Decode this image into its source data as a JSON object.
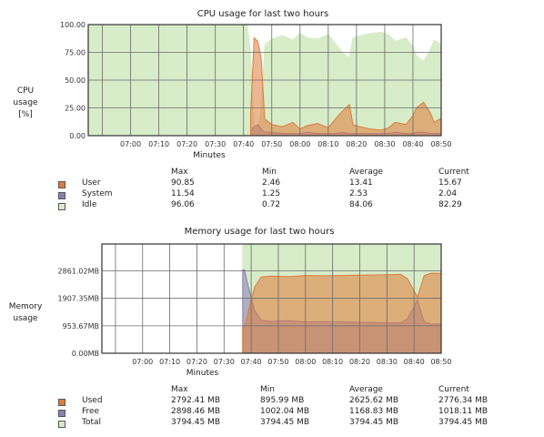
{
  "cpu": {
    "title": "CPU usage for last two hours",
    "ylabel_lines": [
      "CPU",
      "usage",
      "[%]"
    ],
    "xlabel": "Minutes",
    "stats_headers": [
      "Max",
      "Min",
      "Average",
      "Current"
    ],
    "legend": [
      {
        "name": "User",
        "color": "#e07b3a",
        "max": "90.85",
        "min": "2.46",
        "avg": "13.41",
        "cur": "15.67"
      },
      {
        "name": "System",
        "color": "#8a7fb8",
        "max": "11.54",
        "min": "1.25",
        "avg": "2.53",
        "cur": "2.04"
      },
      {
        "name": "Idle",
        "color": "#d7ecc8",
        "max": "96.06",
        "min": "0.72",
        "avg": "84.06",
        "cur": "82.29"
      }
    ]
  },
  "memory": {
    "title": "Memory usage for last two hours",
    "ylabel_lines": [
      "Memory",
      "usage"
    ],
    "xlabel": "Minutes",
    "stats_headers": [
      "Max",
      "Min",
      "Average",
      "Current"
    ],
    "legend": [
      {
        "name": "Used",
        "color": "#e07b3a",
        "max": "2792.41 MB",
        "min": "895.99 MB",
        "avg": "2625.62 MB",
        "cur": "2776.34 MB"
      },
      {
        "name": "Free",
        "color": "#8a7fb8",
        "max": "2898.46 MB",
        "min": "1002.04 MB",
        "avg": "1168.83 MB",
        "cur": "1018.11 MB"
      },
      {
        "name": "Total",
        "color": "#d7ecc8",
        "max": "3794.45 MB",
        "min": "3794.45 MB",
        "avg": "3794.45 MB",
        "cur": "3794.45 MB"
      }
    ]
  },
  "chart_data": [
    {
      "type": "area",
      "title": "CPU usage for last two hours",
      "xlabel": "Minutes",
      "ylabel": "CPU usage [%]",
      "x_ticks": [
        "07:00",
        "07:10",
        "07:20",
        "07:30",
        "07:40",
        "07:50",
        "08:00",
        "08:10",
        "08:20",
        "08:30",
        "08:40",
        "08:50"
      ],
      "y_ticks": [
        "0.00",
        "25.00",
        "50.00",
        "75.00",
        "100.00"
      ],
      "ylim": [
        0,
        100
      ],
      "grid": true,
      "x": [
        0,
        0.42,
        0.45,
        0.46,
        0.47,
        0.48,
        0.49,
        0.5,
        0.52,
        0.55,
        0.58,
        0.6,
        0.62,
        0.65,
        0.68,
        0.7,
        0.72,
        0.74,
        0.75,
        0.77,
        0.8,
        0.83,
        0.85,
        0.87,
        0.9,
        0.92,
        0.93,
        0.95,
        0.97,
        0.98,
        1.0
      ],
      "series": [
        {
          "name": "User",
          "color": "#e07b3a",
          "values": [
            null,
            null,
            null,
            20,
            88,
            85,
            70,
            15,
            10,
            8,
            12,
            6,
            9,
            11,
            7,
            15,
            22,
            28,
            10,
            8,
            6,
            5,
            7,
            12,
            10,
            18,
            25,
            30,
            20,
            12,
            15.67
          ]
        },
        {
          "name": "System",
          "color": "#8a7fb8",
          "values": [
            null,
            null,
            null,
            4,
            8,
            10,
            6,
            3,
            3,
            2,
            2,
            2,
            3,
            2,
            2,
            2,
            3,
            2,
            2,
            2,
            2,
            2,
            2,
            3,
            2,
            2,
            3,
            3,
            2,
            2,
            2.04
          ]
        },
        {
          "name": "Idle",
          "color": "#d7ecc8",
          "values": [
            100,
            100,
            100,
            76,
            4,
            5,
            24,
            82,
            87,
            90,
            86,
            92,
            88,
            87,
            91,
            83,
            75,
            70,
            88,
            90,
            92,
            93,
            91,
            85,
            88,
            80,
            72,
            67,
            78,
            86,
            82.29
          ]
        }
      ]
    },
    {
      "type": "area",
      "title": "Memory usage for last two hours",
      "xlabel": "Minutes",
      "ylabel": "Memory usage",
      "x_ticks": [
        "07:00",
        "07:10",
        "07:20",
        "07:30",
        "07:40",
        "07:50",
        "08:00",
        "08:10",
        "08:20",
        "08:30",
        "08:40",
        "08:50"
      ],
      "y_ticks": [
        "0.00MB",
        "953.67MB",
        "1907.35MB",
        "2861.02MB"
      ],
      "ylim": [
        0,
        3794.45
      ],
      "grid": true,
      "x": [
        0.415,
        0.42,
        0.43,
        0.45,
        0.47,
        0.5,
        0.55,
        0.6,
        0.65,
        0.7,
        0.75,
        0.8,
        0.85,
        0.88,
        0.9,
        0.93,
        0.95,
        0.97,
        1.0
      ],
      "series": [
        {
          "name": "Used",
          "color": "#e07b3a",
          "values": [
            896,
            900,
            1400,
            2300,
            2650,
            2680,
            2660,
            2700,
            2690,
            2700,
            2710,
            2720,
            2730,
            2740,
            2600,
            1950,
            2700,
            2780,
            2776.34
          ]
        },
        {
          "name": "Free",
          "color": "#8a7fb8",
          "values": [
            2898,
            2890,
            2390,
            1490,
            1140,
            1110,
            1130,
            1090,
            1100,
            1090,
            1080,
            1070,
            1060,
            1050,
            1190,
            1840,
            1090,
            1010,
            1018.11
          ]
        },
        {
          "name": "Total",
          "color": "#d7ecc8",
          "values": [
            3794.45,
            3794.45,
            3794.45,
            3794.45,
            3794.45,
            3794.45,
            3794.45,
            3794.45,
            3794.45,
            3794.45,
            3794.45,
            3794.45,
            3794.45,
            3794.45,
            3794.45,
            3794.45,
            3794.45,
            3794.45,
            3794.45
          ]
        }
      ]
    }
  ]
}
